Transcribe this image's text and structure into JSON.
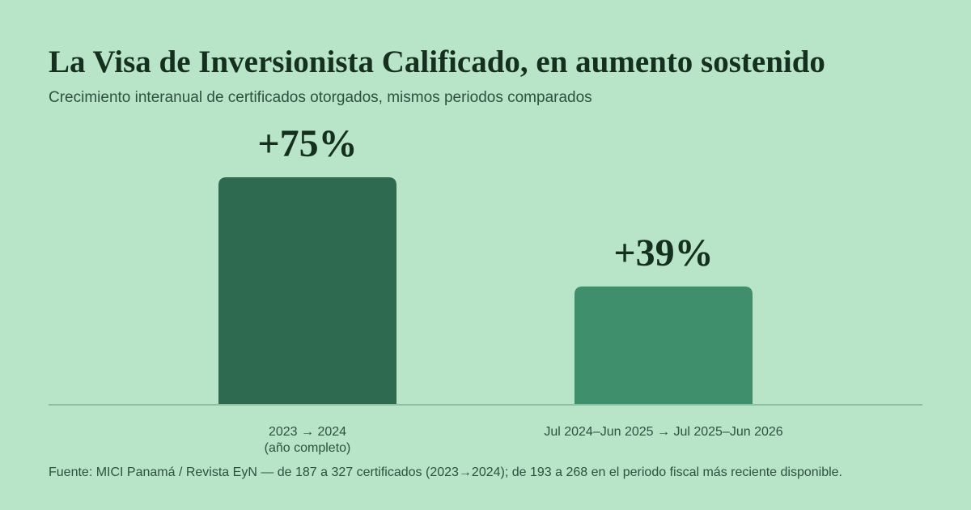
{
  "header": {
    "title": "La Visa de Inversionista Calificado, en aumento sostenido",
    "subtitle": "Crecimiento interanual de certificados otorgados, mismos periodos comparados"
  },
  "chart_data": {
    "type": "bar",
    "categories": [
      [
        "2023 → 2024",
        "(año completo)"
      ],
      [
        "Jul 2024–Jun 2025 → Jul 2025–Jun 2026"
      ]
    ],
    "values": [
      75,
      39
    ],
    "value_labels": [
      "+75%",
      "+39%"
    ],
    "bar_colors": [
      "#2d6a50",
      "#3f8f6c"
    ],
    "baseline_color": "#8fbf9f",
    "ylim": [
      0,
      75
    ],
    "grid": false
  },
  "footer": {
    "source": "Fuente: MICI Panamá / Revista EyN — de 187 a 327 certificados (2023→2024); de 193 a 268 en el periodo fiscal más reciente disponible."
  }
}
